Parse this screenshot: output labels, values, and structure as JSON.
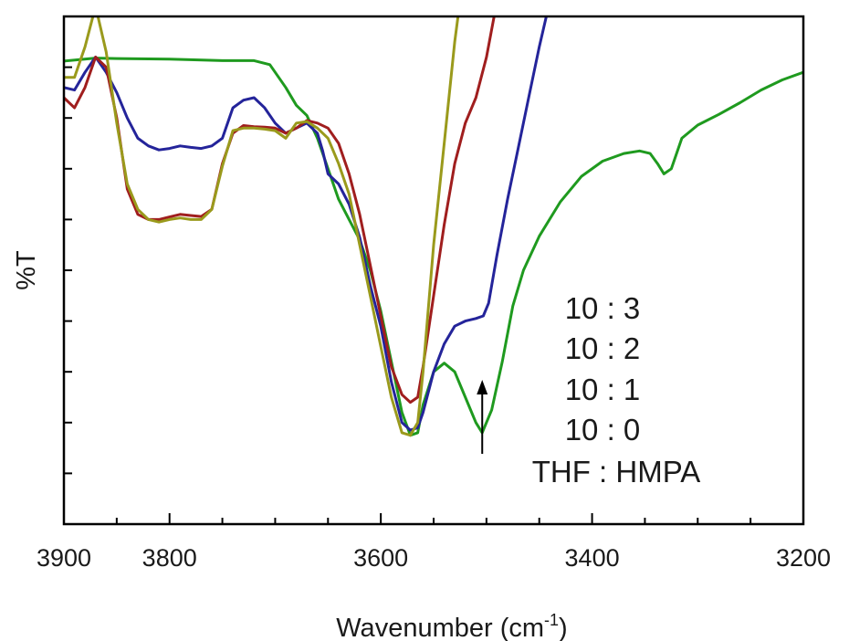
{
  "chart_data": {
    "type": "line",
    "xlabel": "Wavenumber (cm",
    "xlabel_sup": "-1",
    "xlabel_close": ")",
    "ylabel": "%T",
    "xlim": [
      3900,
      3200
    ],
    "ylim": [
      0,
      1
    ],
    "x_reversed": true,
    "grid": false,
    "x_ticks": [
      3900,
      3800,
      3600,
      3400,
      3200
    ],
    "x_tick_labels": [
      "3900",
      "3800",
      "3600",
      "3400",
      "3200"
    ],
    "x_minor_ticks": [
      3900,
      3850,
      3800,
      3750,
      3700,
      3650,
      3600,
      3550,
      3500,
      3450,
      3400,
      3350,
      3300,
      3250,
      3200
    ],
    "y_ticks": [
      0.1,
      0.2,
      0.3,
      0.4,
      0.5,
      0.6,
      0.7,
      0.8,
      0.9
    ],
    "legend_header": "THF : HMPA",
    "legend_placement": "lower-right",
    "series": [
      {
        "name": "10 : 3",
        "color": "#1f9a1f",
        "points": [
          [
            3900,
            0.912
          ],
          [
            3870,
            0.918
          ],
          [
            3850,
            0.917
          ],
          [
            3800,
            0.916
          ],
          [
            3750,
            0.913
          ],
          [
            3720,
            0.913
          ],
          [
            3705,
            0.905
          ],
          [
            3690,
            0.86
          ],
          [
            3680,
            0.825
          ],
          [
            3670,
            0.805
          ],
          [
            3660,
            0.76
          ],
          [
            3650,
            0.7
          ],
          [
            3640,
            0.64
          ],
          [
            3630,
            0.6
          ],
          [
            3620,
            0.56
          ],
          [
            3610,
            0.5
          ],
          [
            3600,
            0.42
          ],
          [
            3590,
            0.32
          ],
          [
            3580,
            0.22
          ],
          [
            3572,
            0.175
          ],
          [
            3565,
            0.18
          ],
          [
            3560,
            0.235
          ],
          [
            3550,
            0.3
          ],
          [
            3540,
            0.317
          ],
          [
            3530,
            0.3
          ],
          [
            3520,
            0.25
          ],
          [
            3510,
            0.2
          ],
          [
            3504,
            0.18
          ],
          [
            3495,
            0.225
          ],
          [
            3485,
            0.32
          ],
          [
            3475,
            0.43
          ],
          [
            3465,
            0.5
          ],
          [
            3450,
            0.567
          ],
          [
            3430,
            0.635
          ],
          [
            3410,
            0.685
          ],
          [
            3390,
            0.715
          ],
          [
            3370,
            0.73
          ],
          [
            3355,
            0.735
          ],
          [
            3345,
            0.73
          ],
          [
            3338,
            0.71
          ],
          [
            3332,
            0.69
          ],
          [
            3325,
            0.7
          ],
          [
            3315,
            0.76
          ],
          [
            3300,
            0.786
          ],
          [
            3280,
            0.807
          ],
          [
            3260,
            0.83
          ],
          [
            3240,
            0.855
          ],
          [
            3220,
            0.875
          ],
          [
            3200,
            0.89
          ]
        ]
      },
      {
        "name": "10 : 2",
        "color": "#24249a",
        "points": [
          [
            3900,
            0.86
          ],
          [
            3890,
            0.855
          ],
          [
            3880,
            0.89
          ],
          [
            3870,
            0.92
          ],
          [
            3860,
            0.89
          ],
          [
            3850,
            0.85
          ],
          [
            3840,
            0.8
          ],
          [
            3830,
            0.76
          ],
          [
            3820,
            0.745
          ],
          [
            3810,
            0.737
          ],
          [
            3800,
            0.74
          ],
          [
            3790,
            0.745
          ],
          [
            3780,
            0.742
          ],
          [
            3770,
            0.74
          ],
          [
            3760,
            0.745
          ],
          [
            3750,
            0.76
          ],
          [
            3740,
            0.82
          ],
          [
            3730,
            0.835
          ],
          [
            3720,
            0.84
          ],
          [
            3710,
            0.82
          ],
          [
            3700,
            0.79
          ],
          [
            3690,
            0.77
          ],
          [
            3680,
            0.78
          ],
          [
            3670,
            0.79
          ],
          [
            3660,
            0.77
          ],
          [
            3655,
            0.735
          ],
          [
            3650,
            0.69
          ],
          [
            3640,
            0.67
          ],
          [
            3630,
            0.63
          ],
          [
            3620,
            0.565
          ],
          [
            3610,
            0.47
          ],
          [
            3600,
            0.39
          ],
          [
            3590,
            0.28
          ],
          [
            3580,
            0.2
          ],
          [
            3572,
            0.185
          ],
          [
            3565,
            0.19
          ],
          [
            3560,
            0.22
          ],
          [
            3550,
            0.3
          ],
          [
            3540,
            0.355
          ],
          [
            3530,
            0.39
          ],
          [
            3520,
            0.4
          ],
          [
            3510,
            0.405
          ],
          [
            3503,
            0.41
          ],
          [
            3498,
            0.435
          ],
          [
            3490,
            0.53
          ],
          [
            3480,
            0.64
          ],
          [
            3470,
            0.74
          ],
          [
            3460,
            0.84
          ],
          [
            3450,
            0.94
          ],
          [
            3440,
            1.03
          ]
        ]
      },
      {
        "name": "10 : 1",
        "color": "#a01e1e",
        "points": [
          [
            3900,
            0.84
          ],
          [
            3890,
            0.82
          ],
          [
            3880,
            0.86
          ],
          [
            3870,
            0.92
          ],
          [
            3860,
            0.9
          ],
          [
            3850,
            0.8
          ],
          [
            3840,
            0.66
          ],
          [
            3830,
            0.61
          ],
          [
            3820,
            0.6
          ],
          [
            3810,
            0.6
          ],
          [
            3800,
            0.605
          ],
          [
            3790,
            0.61
          ],
          [
            3780,
            0.608
          ],
          [
            3770,
            0.606
          ],
          [
            3760,
            0.62
          ],
          [
            3750,
            0.71
          ],
          [
            3740,
            0.77
          ],
          [
            3730,
            0.785
          ],
          [
            3720,
            0.783
          ],
          [
            3710,
            0.782
          ],
          [
            3700,
            0.78
          ],
          [
            3690,
            0.77
          ],
          [
            3680,
            0.78
          ],
          [
            3670,
            0.795
          ],
          [
            3660,
            0.79
          ],
          [
            3650,
            0.78
          ],
          [
            3640,
            0.75
          ],
          [
            3630,
            0.69
          ],
          [
            3620,
            0.61
          ],
          [
            3610,
            0.51
          ],
          [
            3600,
            0.41
          ],
          [
            3590,
            0.31
          ],
          [
            3580,
            0.255
          ],
          [
            3572,
            0.24
          ],
          [
            3565,
            0.25
          ],
          [
            3560,
            0.31
          ],
          [
            3550,
            0.45
          ],
          [
            3540,
            0.59
          ],
          [
            3530,
            0.71
          ],
          [
            3520,
            0.79
          ],
          [
            3510,
            0.84
          ],
          [
            3500,
            0.92
          ],
          [
            3490,
            1.03
          ]
        ]
      },
      {
        "name": "10 : 0",
        "color": "#9a9a1c",
        "points": [
          [
            3900,
            0.88
          ],
          [
            3890,
            0.88
          ],
          [
            3880,
            0.94
          ],
          [
            3870,
            1.02
          ],
          [
            3860,
            0.93
          ],
          [
            3850,
            0.79
          ],
          [
            3840,
            0.67
          ],
          [
            3830,
            0.62
          ],
          [
            3820,
            0.6
          ],
          [
            3810,
            0.595
          ],
          [
            3800,
            0.6
          ],
          [
            3790,
            0.603
          ],
          [
            3780,
            0.6
          ],
          [
            3770,
            0.6
          ],
          [
            3760,
            0.62
          ],
          [
            3750,
            0.705
          ],
          [
            3740,
            0.775
          ],
          [
            3730,
            0.78
          ],
          [
            3720,
            0.78
          ],
          [
            3710,
            0.778
          ],
          [
            3700,
            0.775
          ],
          [
            3690,
            0.76
          ],
          [
            3680,
            0.79
          ],
          [
            3670,
            0.793
          ],
          [
            3660,
            0.78
          ],
          [
            3650,
            0.76
          ],
          [
            3640,
            0.71
          ],
          [
            3630,
            0.65
          ],
          [
            3620,
            0.55
          ],
          [
            3610,
            0.45
          ],
          [
            3600,
            0.35
          ],
          [
            3590,
            0.25
          ],
          [
            3580,
            0.18
          ],
          [
            3572,
            0.175
          ],
          [
            3565,
            0.2
          ],
          [
            3560,
            0.3
          ],
          [
            3550,
            0.55
          ],
          [
            3540,
            0.75
          ],
          [
            3530,
            0.95
          ],
          [
            3525,
            1.03
          ]
        ]
      }
    ],
    "annotation": {
      "type": "arrow",
      "points_at_x": 3504,
      "direction": "up"
    }
  }
}
